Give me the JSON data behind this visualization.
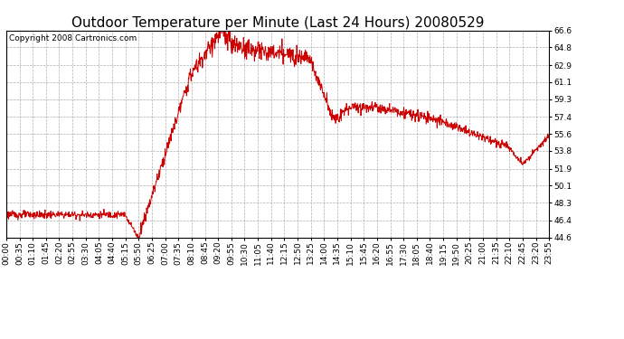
{
  "title": "Outdoor Temperature per Minute (Last 24 Hours) 20080529",
  "copyright_text": "Copyright 2008 Cartronics.com",
  "line_color": "#cc0000",
  "background_color": "#ffffff",
  "plot_bg_color": "#ffffff",
  "grid_color": "#aaaaaa",
  "grid_style": "--",
  "yticks": [
    44.6,
    46.4,
    48.3,
    50.1,
    51.9,
    53.8,
    55.6,
    57.4,
    59.3,
    61.1,
    62.9,
    64.8,
    66.6
  ],
  "ymin": 44.6,
  "ymax": 66.6,
  "xtick_labels": [
    "00:00",
    "00:35",
    "01:10",
    "01:45",
    "02:20",
    "02:55",
    "03:30",
    "04:05",
    "04:40",
    "05:15",
    "05:50",
    "06:25",
    "07:00",
    "07:35",
    "08:10",
    "08:45",
    "09:20",
    "09:55",
    "10:30",
    "11:05",
    "11:40",
    "12:15",
    "12:50",
    "13:25",
    "14:00",
    "14:35",
    "15:10",
    "15:45",
    "16:20",
    "16:55",
    "17:30",
    "18:05",
    "18:40",
    "19:15",
    "19:50",
    "20:25",
    "21:00",
    "21:35",
    "22:10",
    "22:45",
    "23:20",
    "23:55"
  ],
  "title_fontsize": 11,
  "tick_fontsize": 6.5,
  "copyright_fontsize": 6.5
}
